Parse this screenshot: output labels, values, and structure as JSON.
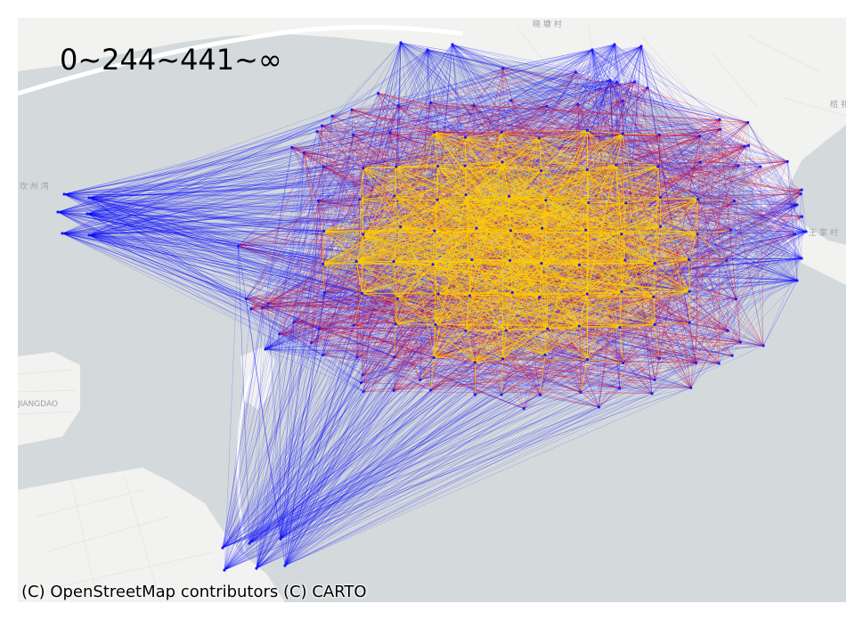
{
  "map": {
    "range_label": "0~244~441~∞",
    "attribution": "(C) OpenStreetMap contributors (C) CARTO",
    "place_labels": [
      "晓 塘 村",
      "桔 祁",
      "坎 州 湾",
      "王 家 村",
      "JIANGDAO"
    ],
    "colors": {
      "water": "#d4dadc",
      "land": "#f2f2f0",
      "road": "#ffffff",
      "edge_low": "#0000ff",
      "edge_mid": "#dd0022",
      "edge_high": "#ffd000"
    },
    "legend_thresholds": [
      0,
      244,
      441,
      "∞"
    ]
  }
}
